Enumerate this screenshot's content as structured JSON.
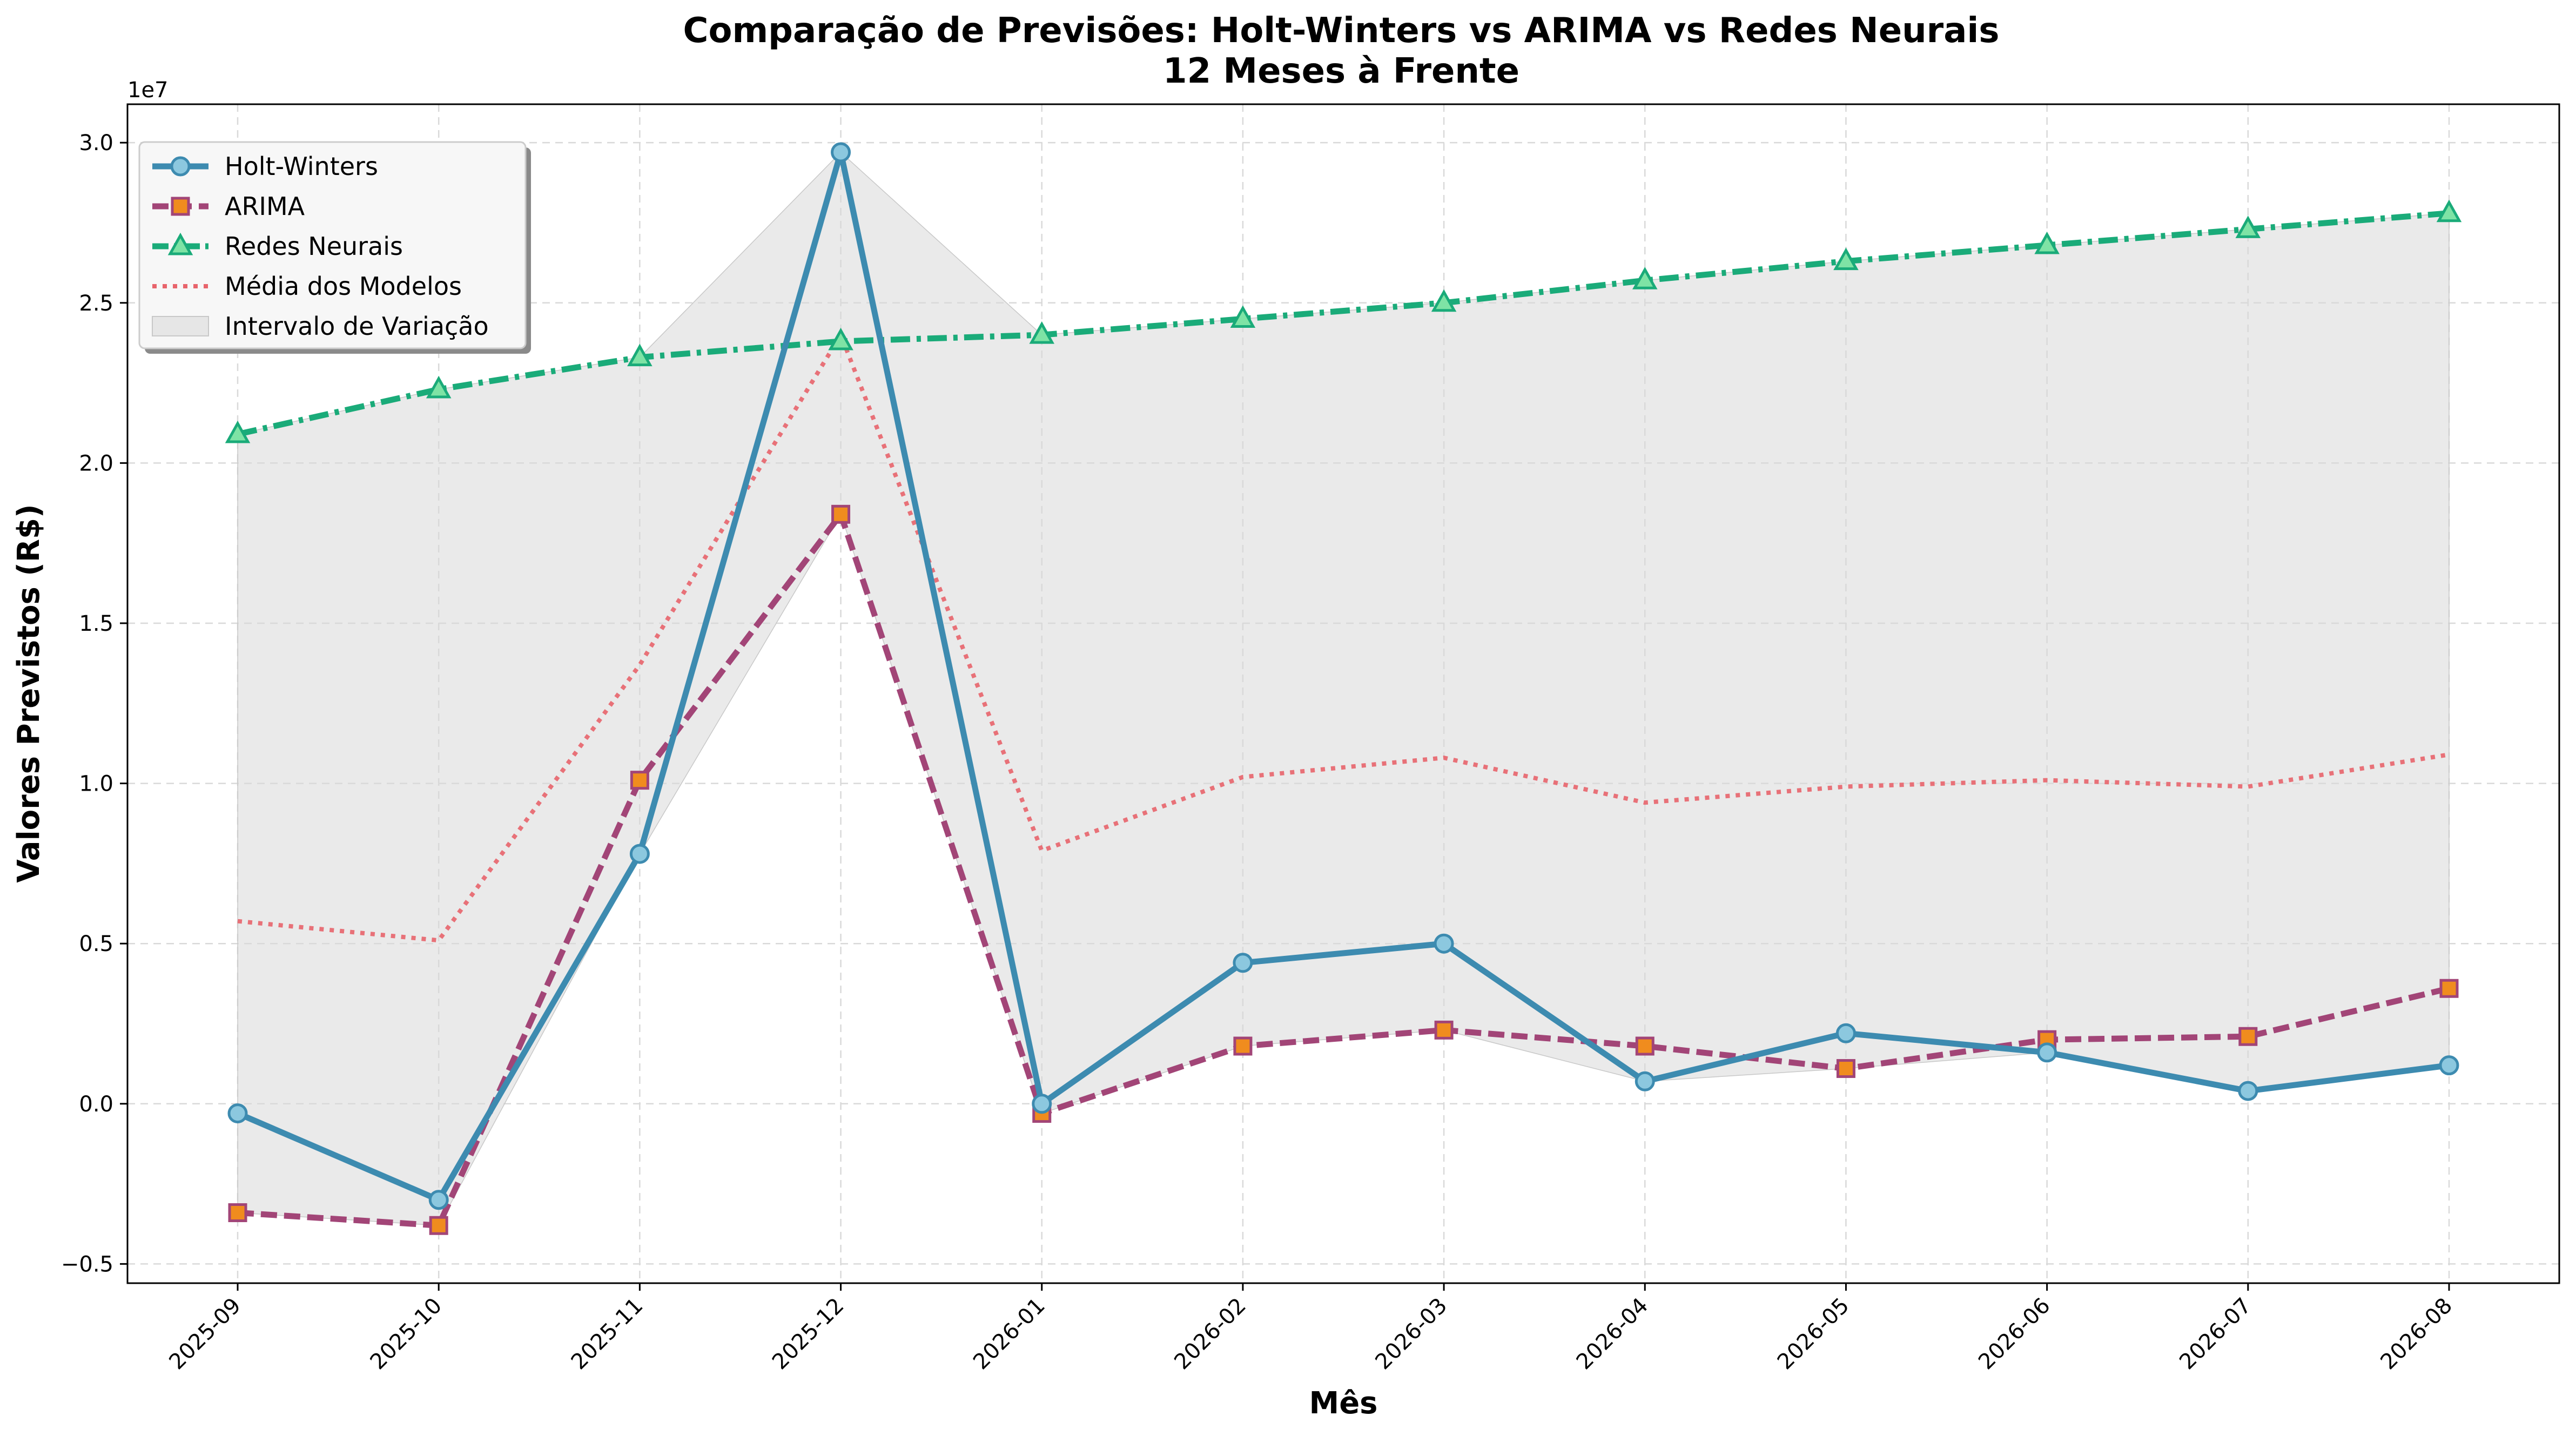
{
  "chart_data": {
    "type": "line",
    "title": "Comparação de Previsões: Holt-Winters vs ARIMA vs Redes Neurais",
    "subtitle": "12 Meses à Frente",
    "xlabel": "Mês",
    "ylabel": "Valores Previstos (R$)",
    "y_scale_label": "1e7",
    "y_scale": 10000000,
    "ylim": [
      -5600000,
      31200000
    ],
    "yticks": [
      -5000000,
      0,
      5000000,
      10000000,
      15000000,
      20000000,
      25000000,
      30000000
    ],
    "ytick_labels": [
      "−0.5",
      "0.0",
      "0.5",
      "1.0",
      "1.5",
      "2.0",
      "2.5",
      "3.0"
    ],
    "grid": true,
    "legend_position": "top-left",
    "categories": [
      "2025-09",
      "2025-10",
      "2025-11",
      "2025-12",
      "2026-01",
      "2026-02",
      "2026-03",
      "2026-04",
      "2026-05",
      "2026-06",
      "2026-07",
      "2026-08"
    ],
    "series": [
      {
        "name": "Holt-Winters",
        "values": [
          -300000,
          -3000000,
          7800000,
          29700000,
          0,
          4400000,
          5000000,
          700000,
          2200000,
          1600000,
          400000,
          1200000
        ],
        "color": "#3d8bb0",
        "marker_fill": "#8cc8df",
        "marker": "circle",
        "line_style": "solid"
      },
      {
        "name": "ARIMA",
        "values": [
          -3400000,
          -3800000,
          10100000,
          18400000,
          -300000,
          1800000,
          2300000,
          1800000,
          1100000,
          2000000,
          2100000,
          3600000
        ],
        "color": "#a24577",
        "marker_fill": "#f08c1e",
        "marker": "square",
        "line_style": "dashed"
      },
      {
        "name": "Redes Neurais",
        "values": [
          20900000,
          22300000,
          23300000,
          23800000,
          24000000,
          24500000,
          25000000,
          25700000,
          26300000,
          26800000,
          27300000,
          27800000
        ],
        "color": "#1aab79",
        "marker_fill": "#7ee3a5",
        "marker": "triangle",
        "line_style": "dashdot"
      },
      {
        "name": "Média dos Modelos",
        "values": [
          5700000,
          5100000,
          13700000,
          24000000,
          7900000,
          10200000,
          10800000,
          9400000,
          9900000,
          10100000,
          9900000,
          10900000
        ],
        "color": "#e8646c",
        "marker": "none",
        "line_style": "dotted"
      }
    ],
    "band": {
      "name": "Intervalo de Variação",
      "color": "#d9d9d9"
    }
  }
}
